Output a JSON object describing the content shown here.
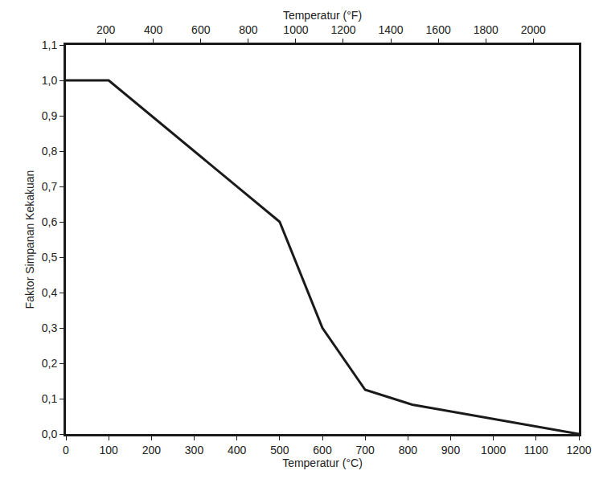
{
  "chart_data": {
    "type": "line",
    "x_title": "Temperatur (°C)",
    "x2_title": "Temperatur (°F)",
    "y_title": "Faktor Simpanan Kekakuan",
    "x": [
      0,
      100,
      500,
      600,
      700,
      810,
      1200
    ],
    "values": [
      1.0,
      1.0,
      0.6,
      0.3,
      0.125,
      0.083,
      0.0
    ],
    "color": "#1a1a1a",
    "grid": false,
    "xlim": [
      0,
      1200
    ],
    "xticks": [
      0,
      100,
      200,
      300,
      400,
      500,
      600,
      700,
      800,
      900,
      1000,
      1100,
      1200
    ],
    "x2lim": [
      32,
      2192
    ],
    "x2ticks": [
      200,
      400,
      600,
      800,
      1000,
      1200,
      1400,
      1600,
      1800,
      2000
    ],
    "ylim": [
      0,
      1.1
    ],
    "yticks": [
      {
        "value": 0,
        "label": "0,0"
      },
      {
        "value": 0.1,
        "label": "0,1"
      },
      {
        "value": 0.2,
        "label": "0,2"
      },
      {
        "value": 0.3,
        "label": "0,3"
      },
      {
        "value": 0.4,
        "label": "0,4"
      },
      {
        "value": 0.5,
        "label": "0,5"
      },
      {
        "value": 0.6,
        "label": "0,6"
      },
      {
        "value": 0.7,
        "label": "0,7"
      },
      {
        "value": 0.8,
        "label": "0,8"
      },
      {
        "value": 0.9,
        "label": "0,9"
      },
      {
        "value": 1.0,
        "label": "1,0"
      },
      {
        "value": 1.1,
        "label": "1,1"
      }
    ]
  }
}
